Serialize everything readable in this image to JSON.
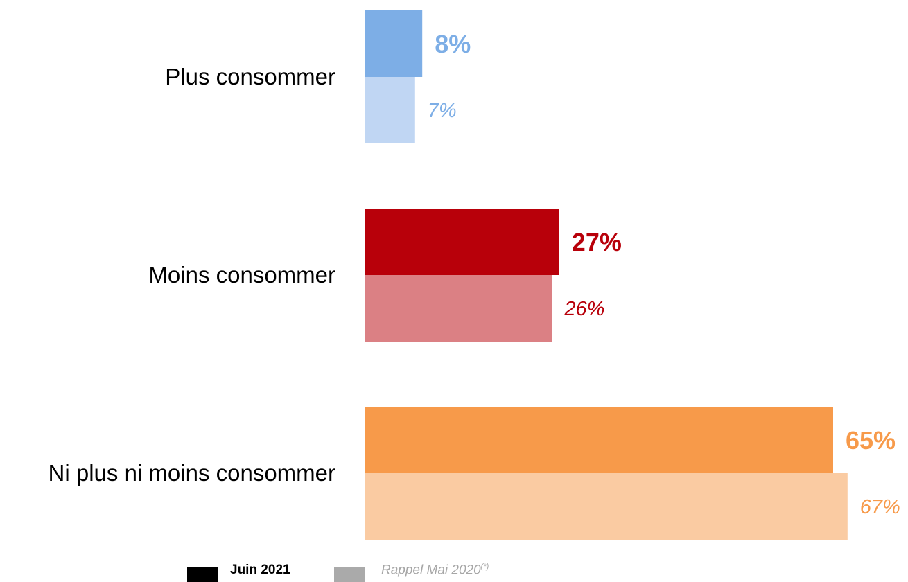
{
  "chart_data": {
    "type": "bar",
    "orientation": "horizontal",
    "title": "",
    "xlabel": "",
    "ylabel": "",
    "xlim": [
      0,
      70
    ],
    "grid": false,
    "legend_position": "bottom",
    "categories": [
      "Plus consommer",
      "Moins consommer",
      "Ni plus ni moins consommer"
    ],
    "series": [
      {
        "name": "Juin 2021",
        "values": [
          8,
          27,
          65
        ],
        "labels": [
          "8%",
          "27%",
          "65%"
        ],
        "colors": [
          "#7DAEE6",
          "#B8000A",
          "#F79A4A"
        ]
      },
      {
        "name": "Rappel Mai 2020",
        "values": [
          7,
          26,
          67
        ],
        "labels": [
          "7%",
          "26%",
          "67%"
        ],
        "colors": [
          "#C0D6F3",
          "#DB8084",
          "#FACBA2"
        ],
        "label_colors": [
          "#7DAEE6",
          "#B8000A",
          "#F79A4A"
        ]
      }
    ]
  },
  "legend": {
    "current": {
      "label": "Juin 2021",
      "color": "#000000"
    },
    "previous": {
      "label": "Rappel Mai 2020",
      "note": "(*)",
      "color": "#AAAAAA",
      "text_color": "#A6A6A6"
    }
  }
}
